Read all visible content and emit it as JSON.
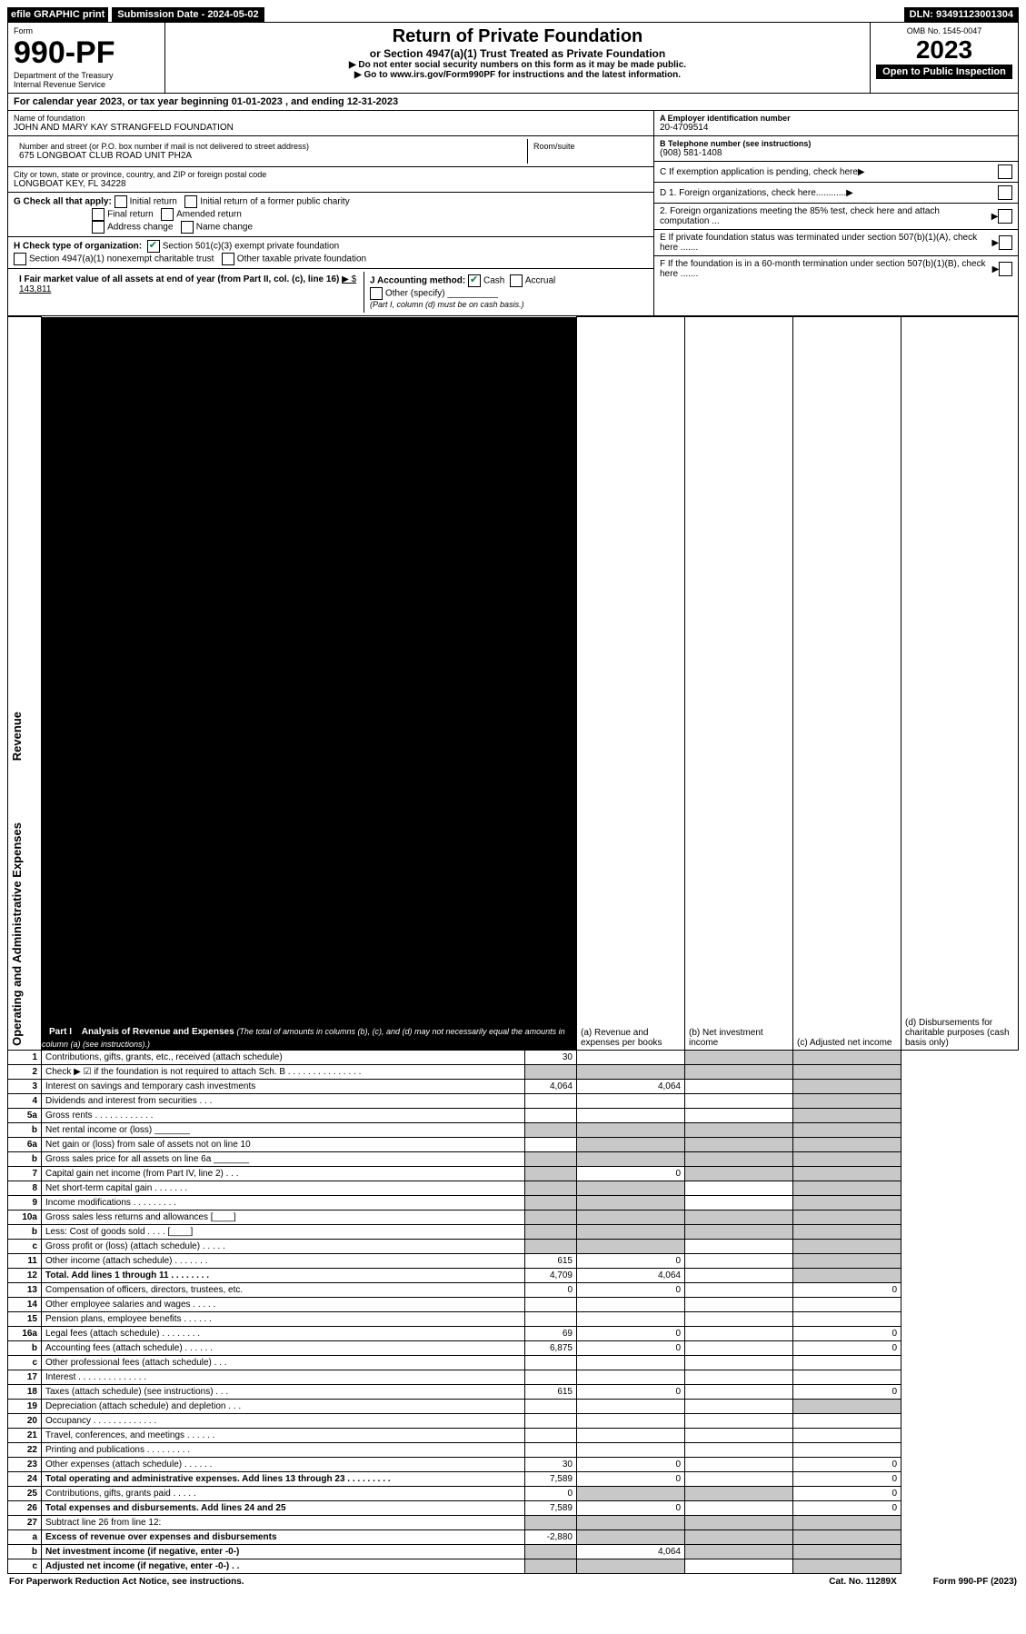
{
  "top": {
    "efile": "efile GRAPHIC print",
    "submission": "Submission Date - 2024-05-02",
    "dln": "DLN: 93491123001304"
  },
  "header": {
    "form_label": "Form",
    "form_number": "990-PF",
    "dept": "Department of the Treasury",
    "irs": "Internal Revenue Service",
    "title": "Return of Private Foundation",
    "subtitle": "or Section 4947(a)(1) Trust Treated as Private Foundation",
    "note1": "▶ Do not enter social security numbers on this form as it may be made public.",
    "note2": "▶ Go to www.irs.gov/Form990PF for instructions and the latest information.",
    "omb": "OMB No. 1545-0047",
    "year": "2023",
    "open": "Open to Public Inspection"
  },
  "cal": "For calendar year 2023, or tax year beginning 01-01-2023            , and ending 12-31-2023",
  "entity": {
    "name_label": "Name of foundation",
    "name": "JOHN AND MARY KAY STRANGFELD FOUNDATION",
    "addr_label": "Number and street (or P.O. box number if mail is not delivered to street address)",
    "addr": "675 LONGBOAT CLUB ROAD UNIT PH2A",
    "room_label": "Room/suite",
    "city_label": "City or town, state or province, country, and ZIP or foreign postal code",
    "city": "LONGBOAT KEY, FL  34228",
    "ein_label": "A Employer identification number",
    "ein": "20-4709514",
    "tel_label": "B Telephone number (see instructions)",
    "tel": "(908) 581-1408",
    "c": "C  If exemption application is pending, check here",
    "d1": "D 1. Foreign organizations, check here............",
    "d2": "2. Foreign organizations meeting the 85% test, check here and attach computation ...",
    "e": "E  If private foundation status was terminated under section 507(b)(1)(A), check here .......",
    "f": "F  If the foundation is in a 60-month termination under section 507(b)(1)(B), check here .......",
    "g_label": "G Check all that apply:",
    "g_opts": [
      "Initial return",
      "Initial return of a former public charity",
      "Final return",
      "Amended return",
      "Address change",
      "Name change"
    ],
    "h_label": "H Check type of organization:",
    "h1": "Section 501(c)(3) exempt private foundation",
    "h2": "Section 4947(a)(1) nonexempt charitable trust",
    "h3": "Other taxable private foundation",
    "i_label": "I Fair market value of all assets at end of year (from Part II, col. (c), line 16)",
    "i_val": "▶ $  143,811",
    "j_label": "J Accounting method:",
    "j_cash": "Cash",
    "j_accrual": "Accrual",
    "j_other": "Other (specify)",
    "j_note": "(Part I, column (d) must be on cash basis.)"
  },
  "part1": {
    "tag": "Part I",
    "title": "Analysis of Revenue and Expenses",
    "title_note": "(The total of amounts in columns (b), (c), and (d) may not necessarily equal the amounts in column (a) (see instructions).)",
    "col_a": "(a)  Revenue and expenses per books",
    "col_b": "(b)  Net investment income",
    "col_c": "(c)  Adjusted net income",
    "col_d": "(d)  Disbursements for charitable purposes (cash basis only)"
  },
  "sections": {
    "revenue": "Revenue",
    "opexp": "Operating and Administrative Expenses"
  },
  "rows": [
    {
      "n": "1",
      "label": "Contributions, gifts, grants, etc., received (attach schedule)",
      "a": "30",
      "b": "",
      "c": "shade",
      "d": "shade"
    },
    {
      "n": "2",
      "label": "Check ▶ ☑ if the foundation is not required to attach Sch. B      .   .   .   .   .   .   .   .   .   .   .   .   .   .   .",
      "a": "shade",
      "b": "shade",
      "c": "shade",
      "d": "shade"
    },
    {
      "n": "3",
      "label": "Interest on savings and temporary cash investments",
      "a": "4,064",
      "b": "4,064",
      "c": "",
      "d": "shade"
    },
    {
      "n": "4",
      "label": "Dividends and interest from securities     .   .   .",
      "a": "",
      "b": "",
      "c": "",
      "d": "shade"
    },
    {
      "n": "5a",
      "label": "Gross rents     .   .   .   .   .   .   .   .   .   .   .   .",
      "a": "",
      "b": "",
      "c": "",
      "d": "shade"
    },
    {
      "n": "b",
      "label": "Net rental income or (loss)  _______",
      "a": "shade",
      "b": "shade",
      "c": "shade",
      "d": "shade"
    },
    {
      "n": "6a",
      "label": "Net gain or (loss) from sale of assets not on line 10",
      "a": "",
      "b": "shade",
      "c": "shade",
      "d": "shade"
    },
    {
      "n": "b",
      "label": "Gross sales price for all assets on line 6a _______",
      "a": "shade",
      "b": "shade",
      "c": "shade",
      "d": "shade"
    },
    {
      "n": "7",
      "label": "Capital gain net income (from Part IV, line 2)   .   .   .",
      "a": "shade",
      "b": "0",
      "c": "shade",
      "d": "shade"
    },
    {
      "n": "8",
      "label": "Net short-term capital gain   .   .   .   .   .   .   .",
      "a": "shade",
      "b": "shade",
      "c": "",
      "d": "shade"
    },
    {
      "n": "9",
      "label": "Income modifications   .   .   .   .   .   .   .   .   .",
      "a": "shade",
      "b": "shade",
      "c": "",
      "d": "shade"
    },
    {
      "n": "10a",
      "label": "Gross sales less returns and allowances   [____]",
      "a": "shade",
      "b": "shade",
      "c": "shade",
      "d": "shade"
    },
    {
      "n": "b",
      "label": "Less: Cost of goods sold   .   .   .   .   [____]",
      "a": "shade",
      "b": "shade",
      "c": "shade",
      "d": "shade"
    },
    {
      "n": "c",
      "label": "Gross profit or (loss) (attach schedule)   .   .   .   .   .",
      "a": "shade",
      "b": "shade",
      "c": "",
      "d": "shade"
    },
    {
      "n": "11",
      "label": "Other income (attach schedule)   .   .   .   .   .   .   .",
      "a": "615",
      "b": "0",
      "c": "",
      "d": "shade"
    },
    {
      "n": "12",
      "label": "Total. Add lines 1 through 11   .   .   .   .   .   .   .   .",
      "bold": true,
      "a": "4,709",
      "b": "4,064",
      "c": "",
      "d": "shade"
    },
    {
      "n": "13",
      "label": "Compensation of officers, directors, trustees, etc.",
      "a": "0",
      "b": "0",
      "c": "",
      "d": "0"
    },
    {
      "n": "14",
      "label": "Other employee salaries and wages   .   .   .   .   .",
      "a": "",
      "b": "",
      "c": "",
      "d": ""
    },
    {
      "n": "15",
      "label": "Pension plans, employee benefits   .   .   .   .   .   .",
      "a": "",
      "b": "",
      "c": "",
      "d": ""
    },
    {
      "n": "16a",
      "label": "Legal fees (attach schedule)  .   .   .   .   .   .   .   .",
      "a": "69",
      "b": "0",
      "c": "",
      "d": "0"
    },
    {
      "n": "b",
      "label": "Accounting fees (attach schedule)  .   .   .   .   .   .",
      "a": "6,875",
      "b": "0",
      "c": "",
      "d": "0"
    },
    {
      "n": "c",
      "label": "Other professional fees (attach schedule)   .   .   .",
      "a": "",
      "b": "",
      "c": "",
      "d": ""
    },
    {
      "n": "17",
      "label": "Interest  .   .   .   .   .   .   .   .   .   .   .   .   .   .",
      "a": "",
      "b": "",
      "c": "",
      "d": ""
    },
    {
      "n": "18",
      "label": "Taxes (attach schedule) (see instructions)   .   .   .",
      "a": "615",
      "b": "0",
      "c": "",
      "d": "0"
    },
    {
      "n": "19",
      "label": "Depreciation (attach schedule) and depletion   .   .   .",
      "a": "",
      "b": "",
      "c": "",
      "d": "shade"
    },
    {
      "n": "20",
      "label": "Occupancy  .   .   .   .   .   .   .   .   .   .   .   .   .",
      "a": "",
      "b": "",
      "c": "",
      "d": ""
    },
    {
      "n": "21",
      "label": "Travel, conferences, and meetings  .   .   .   .   .   .",
      "a": "",
      "b": "",
      "c": "",
      "d": ""
    },
    {
      "n": "22",
      "label": "Printing and publications  .   .   .   .   .   .   .   .   .",
      "a": "",
      "b": "",
      "c": "",
      "d": ""
    },
    {
      "n": "23",
      "label": "Other expenses (attach schedule)  .   .   .   .   .   .",
      "a": "30",
      "b": "0",
      "c": "",
      "d": "0"
    },
    {
      "n": "24",
      "label": "Total operating and administrative expenses. Add lines 13 through 23   .   .   .   .   .   .   .   .   .",
      "bold": true,
      "a": "7,589",
      "b": "0",
      "c": "",
      "d": "0"
    },
    {
      "n": "25",
      "label": "Contributions, gifts, grants paid    .   .   .   .   .",
      "a": "0",
      "b": "shade",
      "c": "shade",
      "d": "0"
    },
    {
      "n": "26",
      "label": "Total expenses and disbursements. Add lines 24 and 25",
      "bold": true,
      "a": "7,589",
      "b": "0",
      "c": "",
      "d": "0"
    },
    {
      "n": "27",
      "label": "Subtract line 26 from line 12:",
      "a": "shade",
      "b": "shade",
      "c": "shade",
      "d": "shade"
    },
    {
      "n": "a",
      "label": "Excess of revenue over expenses and disbursements",
      "bold": true,
      "a": "-2,880",
      "b": "shade",
      "c": "shade",
      "d": "shade"
    },
    {
      "n": "b",
      "label": "Net investment income (if negative, enter -0-)",
      "bold": true,
      "a": "shade",
      "b": "4,064",
      "c": "shade",
      "d": "shade"
    },
    {
      "n": "c",
      "label": "Adjusted net income (if negative, enter -0-)   .   .",
      "bold": true,
      "a": "shade",
      "b": "shade",
      "c": "",
      "d": "shade"
    }
  ],
  "footer": {
    "left": "For Paperwork Reduction Act Notice, see instructions.",
    "mid": "Cat. No. 11289X",
    "right": "Form 990-PF (2023)"
  },
  "colors": {
    "shade": "#c8c8c8",
    "link": "#004b8d",
    "check": "#0a7d3c"
  }
}
